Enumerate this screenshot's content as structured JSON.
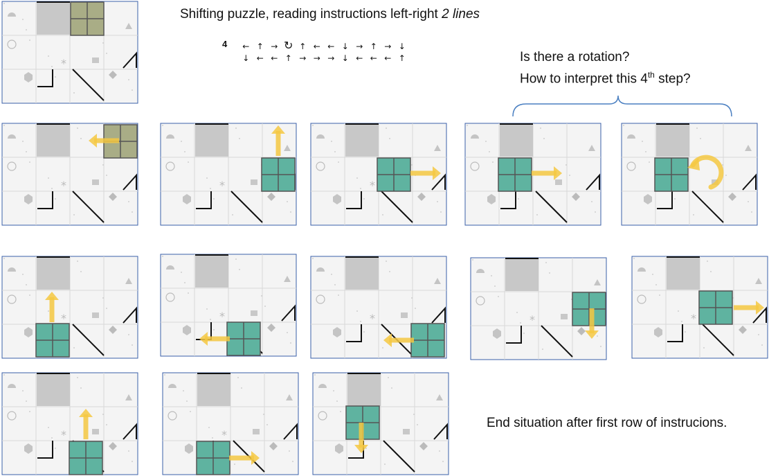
{
  "header": {
    "title_main": "Shifting puzzle, reading instructions left-right ",
    "title_emph": "2 lines"
  },
  "sequence": {
    "number": "4",
    "line1": [
      "←",
      "↑",
      "→",
      "↻",
      "↑",
      "←",
      "←",
      "↓",
      "→",
      "↑",
      "→",
      "↓"
    ],
    "line2": [
      "↓",
      "←",
      "←",
      "↑",
      "→",
      "→",
      "→",
      "↓",
      "←",
      "←",
      "←",
      "↑"
    ]
  },
  "question": {
    "line1": "Is there a rotation?",
    "line2_pre": "How to interpret this 4",
    "line2_sup": "th",
    "line2_post": " step?"
  },
  "footer": {
    "end_text": "End situation after first row of instrucions."
  },
  "colors": {
    "teal_block": "#5fb3a0",
    "olive_block": "#a9ad86",
    "gray_block": "#c8c8c8",
    "arrow": "#f5c842",
    "frame": "#3a5fa8"
  },
  "boards": [
    {
      "id": "start",
      "block": "olive",
      "arrow": "none"
    },
    {
      "id": "step1",
      "block": "olive",
      "arrow": "left"
    },
    {
      "id": "step2",
      "block": "teal",
      "arrow": "up"
    },
    {
      "id": "step3",
      "block": "teal",
      "arrow": "right"
    },
    {
      "id": "step4a",
      "block": "teal",
      "arrow": "right"
    },
    {
      "id": "step4b",
      "block": "teal",
      "arrow": "rotate"
    },
    {
      "id": "step5",
      "block": "teal",
      "arrow": "up"
    },
    {
      "id": "step6",
      "block": "teal",
      "arrow": "left"
    },
    {
      "id": "step7",
      "block": "teal",
      "arrow": "left"
    },
    {
      "id": "step8",
      "block": "teal",
      "arrow": "down"
    },
    {
      "id": "step9",
      "block": "teal",
      "arrow": "right"
    },
    {
      "id": "step10",
      "block": "teal",
      "arrow": "up"
    },
    {
      "id": "step11",
      "block": "teal",
      "arrow": "right"
    },
    {
      "id": "step12",
      "block": "teal",
      "arrow": "down"
    }
  ]
}
